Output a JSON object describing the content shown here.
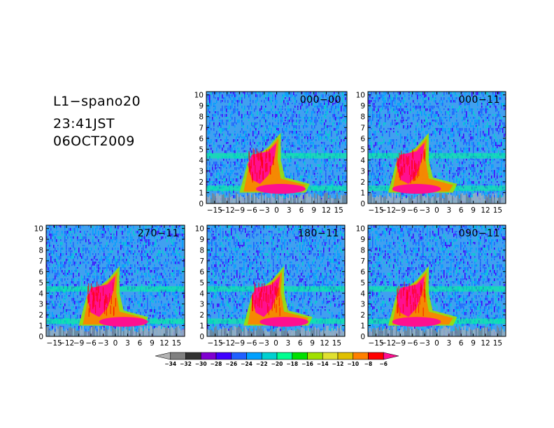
{
  "header": {
    "line1": "L1−spano20",
    "line2": "23:41JST",
    "line3": "06OCT2009"
  },
  "colors": {
    "levels": [
      "#b3b3b3",
      "#808080",
      "#333333",
      "#8000d0",
      "#4000ff",
      "#2060ff",
      "#00a0ff",
      "#00d0d0",
      "#00ff90",
      "#00e000",
      "#a0e000",
      "#e0e030",
      "#e0c000",
      "#ff8000",
      "#ff0000",
      "#ff1090"
    ],
    "background_noise": "#40a0f0",
    "frame": "#000000"
  },
  "chart_data": {
    "type": "heatmap",
    "shared": {
      "x_ticks": [
        -15,
        -12,
        -9,
        -6,
        -3,
        0,
        3,
        6,
        9,
        12,
        15
      ],
      "x_tick_labels": [
        "−15",
        "−12",
        "−9",
        "−6",
        "−3",
        "0",
        "3",
        "6",
        "9",
        "12",
        "15"
      ],
      "y_ticks": [
        0,
        1,
        2,
        3,
        4,
        5,
        6,
        7,
        8,
        9,
        10
      ],
      "y_tick_labels": [
        "0",
        "1",
        "2",
        "3",
        "4",
        "5",
        "6",
        "7",
        "8",
        "9",
        "10"
      ],
      "xlim": [
        -17,
        17
      ],
      "ylim": [
        0,
        10.3
      ]
    },
    "colorbar": {
      "levels": [
        -34,
        -32,
        -30,
        -28,
        -26,
        -24,
        -22,
        -20,
        -18,
        -16,
        -14,
        -12,
        -10,
        -8,
        -6
      ],
      "labels": [
        "−34",
        "−32",
        "−30",
        "−28",
        "−26",
        "−24",
        "−22",
        "−20",
        "−18",
        "−16",
        "−14",
        "−12",
        "−10",
        "−8",
        "−6"
      ]
    },
    "panels": [
      {
        "label": "000−00",
        "layer_height": 4.4,
        "layer_center_x": -1,
        "bright_offset_x": 1
      },
      {
        "label": "000−11",
        "layer_height": 4.4,
        "layer_center_x": -4,
        "bright_offset_x": -2
      },
      {
        "label": "270−11",
        "layer_height": 4.4,
        "layer_center_x": -1,
        "bright_offset_x": 2
      },
      {
        "label": "180−11",
        "layer_height": 4.4,
        "layer_center_x": 0,
        "bright_offset_x": 1
      },
      {
        "label": "090−11",
        "layer_height": 4.4,
        "layer_center_x": -4,
        "bright_offset_x": -2
      }
    ]
  }
}
